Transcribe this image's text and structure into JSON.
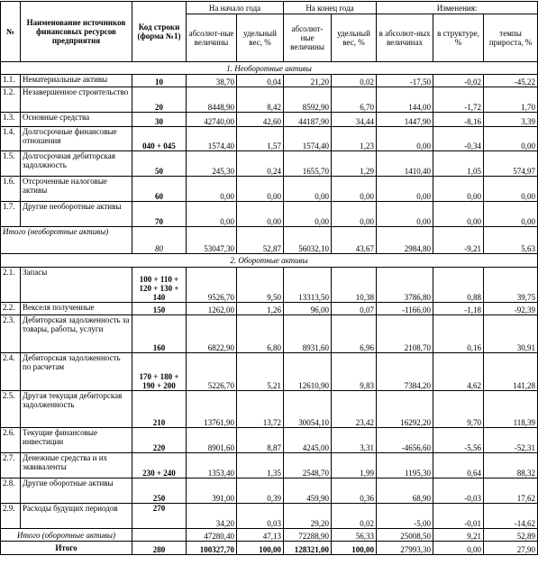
{
  "header": {
    "no": "№",
    "name": "Наименование источников финансовых ресурсов предприятия",
    "code": "Код строки (форма №1)",
    "start": "На начало года",
    "end": "На конец года",
    "change": "Изменения:",
    "abs": "абсолют-ные величины",
    "share": "удельный вес, %",
    "abs2": "абсолют-ные величины",
    "share2": "удельный вес, %",
    "chg_abs": "в абсолют-ных величинах",
    "chg_struct": "в структуре, %",
    "chg_rate": "темпы прироста, %"
  },
  "section1": "1. Необоротные активы",
  "rows1": [
    {
      "idx": "1.1.",
      "name": "Нематериальные активы",
      "code": "10",
      "a": "38,70",
      "b": "0,04",
      "c": "21,20",
      "d": "0,02",
      "e": "-17,50",
      "f": "-0,02",
      "g": "-45,22"
    },
    {
      "idx": "1.2.",
      "name": "Незавершенное строительство",
      "code": "20",
      "a": "8448,90",
      "b": "8,42",
      "c": "8592,90",
      "d": "6,70",
      "e": "144,00",
      "f": "-1,72",
      "g": "1,70"
    },
    {
      "idx": "1.3.",
      "name": "Основные средства",
      "code": "30",
      "a": "42740,00",
      "b": "42,60",
      "c": "44187,90",
      "d": "34,44",
      "e": "1447,90",
      "f": "-8,16",
      "g": "3,39"
    },
    {
      "idx": "1.4.",
      "name": "Долгосрочные финансовые отношения",
      "code": "040 + 045",
      "a": "1574,40",
      "b": "1,57",
      "c": "1574,40",
      "d": "1,23",
      "e": "0,00",
      "f": "-0,34",
      "g": "0,00"
    },
    {
      "idx": "1.5.",
      "name": "Долгосрочная дебиторская задолжность",
      "code": "50",
      "a": "245,30",
      "b": "0,24",
      "c": "1655,70",
      "d": "1,29",
      "e": "1410,40",
      "f": "1,05",
      "g": "574,97"
    },
    {
      "idx": "1.6.",
      "name": "Отсроченные налоговые активы",
      "code": "60",
      "a": "0,00",
      "b": "0,00",
      "c": "0,00",
      "d": "0,00",
      "e": "0,00",
      "f": "0,00",
      "g": "0,00"
    },
    {
      "idx": "1.7.",
      "name": "Другие необоротные активы",
      "code": "70",
      "a": "0,00",
      "b": "0,00",
      "c": "0,00",
      "d": "0,00",
      "e": "0,00",
      "f": "0,00",
      "g": "0,00"
    }
  ],
  "total1": {
    "name": "Итого (необоротные активы)",
    "code": "80",
    "a": "53047,30",
    "b": "52,87",
    "c": "56032,10",
    "d": "43,67",
    "e": "2984,80",
    "f": "-9,21",
    "g": "5,63"
  },
  "section2": "2. Оборотные активы",
  "rows2": [
    {
      "idx": "2.1.",
      "name": "Запасы",
      "code": "100 + 110 + 120 + 130 + 140",
      "a": "9526,70",
      "b": "9,50",
      "c": "13313,50",
      "d": "10,38",
      "e": "3786,80",
      "f": "0,88",
      "g": "39,75"
    },
    {
      "idx": "2.2.",
      "name": "Векселя полученные",
      "code": "150",
      "a": "1262,00",
      "b": "1,26",
      "c": "96,00",
      "d": "0,07",
      "e": "-1166,00",
      "f": "-1,18",
      "g": "-92,39"
    },
    {
      "idx": "2.3.",
      "name": "Дебиторская задолженность за товары, работы, услуги",
      "code": "160",
      "a": "6822,90",
      "b": "6,80",
      "c": "8931,60",
      "d": "6,96",
      "e": "2108,70",
      "f": "0,16",
      "g": "30,91"
    },
    {
      "idx": "2.4.",
      "name": "Дебиторская задолженность по расчетам",
      "code": "170 + 180 + 190 + 200",
      "a": "5226,70",
      "b": "5,21",
      "c": "12610,90",
      "d": "9,83",
      "e": "7384,20",
      "f": "4,62",
      "g": "141,28"
    },
    {
      "idx": "2.5.",
      "name": "Другая текущая дебиторская задолженность",
      "code": "210",
      "a": "13761,90",
      "b": "13,72",
      "c": "30054,10",
      "d": "23,42",
      "e": "16292,20",
      "f": "9,70",
      "g": "118,39"
    },
    {
      "idx": "2.6.",
      "name": "Текущие финансовые инвестиции",
      "code": "220",
      "a": "8901,60",
      "b": "8,87",
      "c": "4245,00",
      "d": "3,31",
      "e": "-4656,60",
      "f": "-5,56",
      "g": "-52,31"
    },
    {
      "idx": "2.7.",
      "name": "Денежные средства и их эквиваленты",
      "code": "230 + 240",
      "a": "1353,40",
      "b": "1,35",
      "c": "2548,70",
      "d": "1,99",
      "e": "1195,30",
      "f": "0,64",
      "g": "88,32"
    },
    {
      "idx": "2.8.",
      "name": "Другие оборотные активы",
      "code": "250",
      "a": "391,00",
      "b": "0,39",
      "c": "459,90",
      "d": "0,36",
      "e": "68,90",
      "f": "-0,03",
      "g": "17,62"
    },
    {
      "idx": "2.9.",
      "name": "Расходы будущих периодов",
      "code": "270",
      "a": "34,20",
      "b": "0,03",
      "c": "29,20",
      "d": "0,02",
      "e": "-5,00",
      "f": "-0,01",
      "g": "-14,62"
    }
  ],
  "total2": {
    "name": "Итого (оборотные активы)",
    "code": "",
    "a": "47280,40",
    "b": "47,13",
    "c": "72288,90",
    "d": "56,33",
    "e": "25008,50",
    "f": "9,21",
    "g": "52,89"
  },
  "grand": {
    "name": "Итого",
    "code": "280",
    "a": "100327,70",
    "b": "100,00",
    "c": "128321,00",
    "d": "100,00",
    "e": "27993,30",
    "f": "0,00",
    "g": "27,90"
  }
}
